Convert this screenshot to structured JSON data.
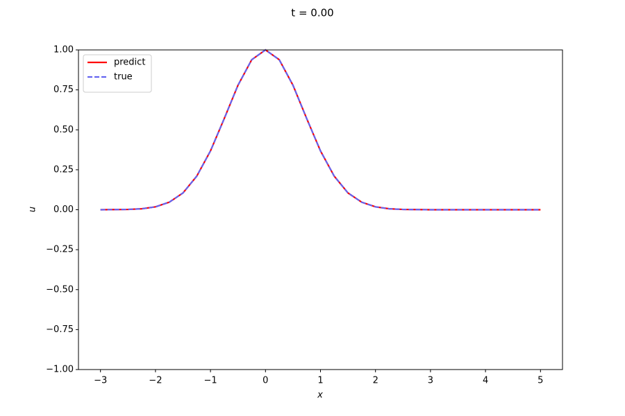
{
  "chart_data": {
    "type": "line",
    "title": "t = 0.00",
    "x_label": "x",
    "y_label": "u",
    "x": [
      -3,
      -2.75,
      -2.5,
      -2.25,
      -2,
      -1.75,
      -1.5,
      -1.25,
      -1,
      -0.75,
      -0.5,
      -0.25,
      0,
      0.25,
      0.5,
      0.75,
      1,
      1.25,
      1.5,
      1.75,
      2,
      2.25,
      2.5,
      2.75,
      3,
      3.25,
      3.5,
      3.75,
      4,
      4.25,
      4.5,
      4.75,
      5
    ],
    "series": [
      {
        "name": "predict",
        "color": "#ff0000",
        "dashed": false,
        "values": [
          0.0,
          0.001,
          0.002,
          0.006,
          0.018,
          0.047,
          0.105,
          0.21,
          0.368,
          0.57,
          0.779,
          0.939,
          1,
          0.939,
          0.779,
          0.57,
          0.368,
          0.21,
          0.105,
          0.047,
          0.018,
          0.006,
          0.002,
          0.001,
          0,
          0,
          0,
          0,
          0,
          0,
          0,
          0,
          0
        ]
      },
      {
        "name": "true",
        "color": "#6464f0",
        "dashed": true,
        "values": [
          0.0,
          0.001,
          0.002,
          0.006,
          0.018,
          0.047,
          0.105,
          0.21,
          0.368,
          0.57,
          0.779,
          0.939,
          1,
          0.939,
          0.779,
          0.57,
          0.368,
          0.21,
          0.105,
          0.047,
          0.018,
          0.006,
          0.002,
          0.001,
          0,
          0,
          0,
          0,
          0,
          0,
          0,
          0,
          0
        ]
      }
    ],
    "xlim": [
      -3.4,
      5.4
    ],
    "ylim": [
      -1,
      1
    ],
    "xticks": [
      {
        "value": -3,
        "label": "−3"
      },
      {
        "value": -2,
        "label": "−2"
      },
      {
        "value": -1,
        "label": "−1"
      },
      0,
      1,
      2,
      3,
      4,
      5
    ],
    "yticks": [
      {
        "value": -1,
        "label": "−1.00"
      },
      {
        "value": -0.75,
        "label": "−0.75"
      },
      {
        "value": -0.5,
        "label": "−0.50"
      },
      {
        "value": -0.25,
        "label": "−0.25"
      },
      {
        "value": 0,
        "label": "0.00"
      },
      {
        "value": 0.25,
        "label": "0.25"
      },
      {
        "value": 0.5,
        "label": "0.50"
      },
      {
        "value": 0.75,
        "label": "0.75"
      },
      {
        "value": 1,
        "label": "1.00"
      }
    ],
    "legend": "upper left",
    "grid": false
  }
}
